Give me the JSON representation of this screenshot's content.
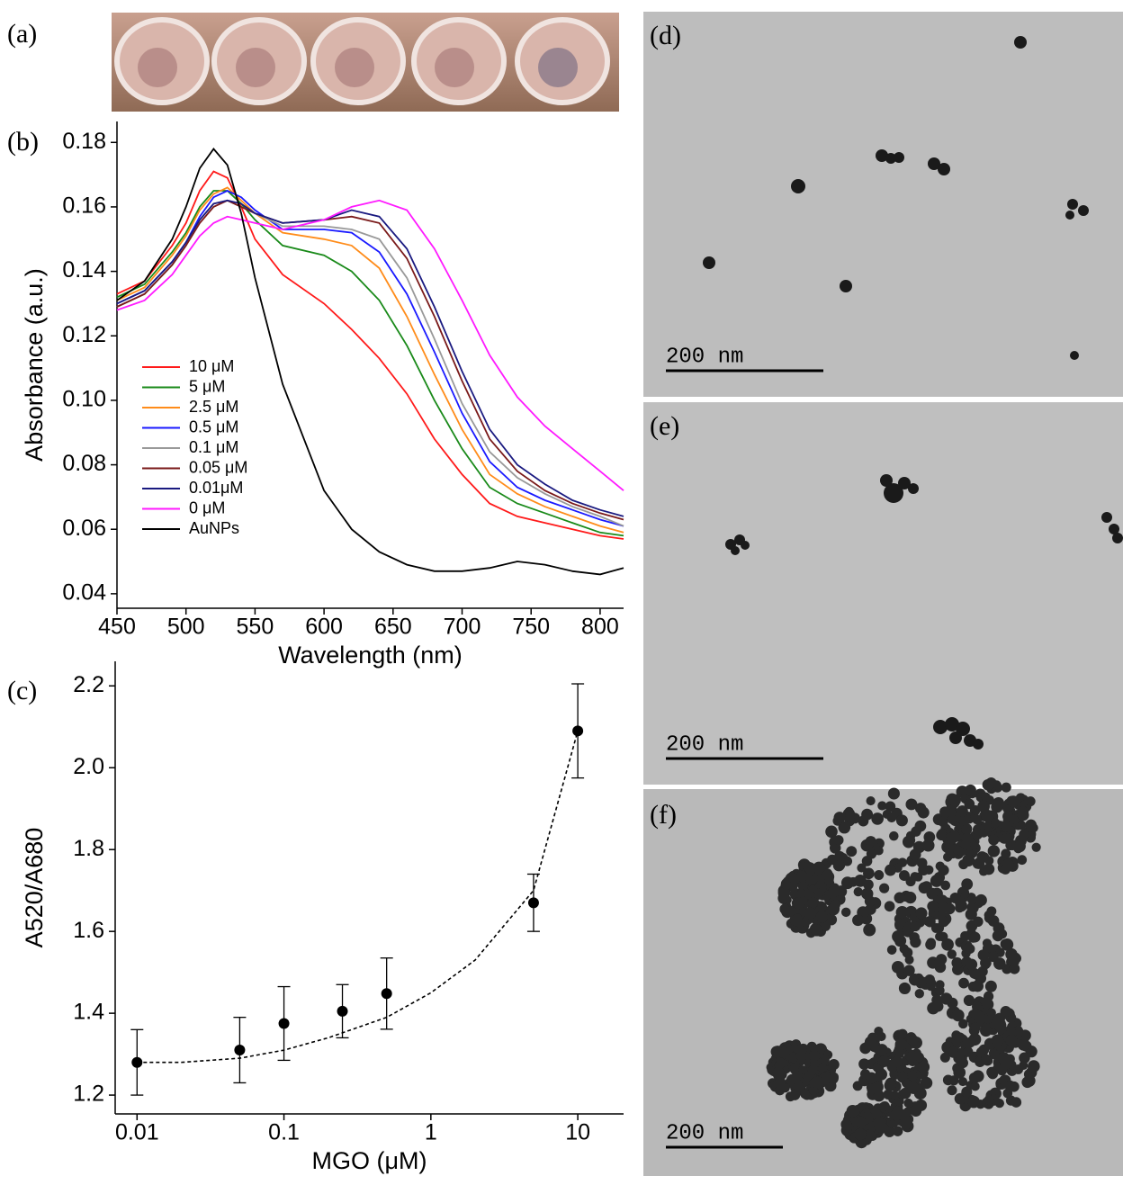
{
  "panel_labels": [
    "(a)",
    "(b)",
    "(c)",
    "(d)",
    "(e)",
    "(f)"
  ],
  "scale_bars": [
    "200 nm",
    "200 nm",
    "200 nm"
  ],
  "chart_data": [
    {
      "type": "line",
      "xlabel": "Wavelength (nm)",
      "ylabel": "Absorbance (a.u.)",
      "x": [
        450,
        470,
        490,
        500,
        510,
        520,
        530,
        540,
        550,
        570,
        600,
        620,
        640,
        660,
        680,
        700,
        720,
        740,
        760,
        780,
        800,
        817
      ],
      "xlim": [
        450,
        817
      ],
      "xticks": [
        450,
        500,
        550,
        600,
        650,
        700,
        750,
        800
      ],
      "ylim": [
        0.0355,
        0.1865
      ],
      "yticks": [
        0.04,
        0.06,
        0.08,
        {
          "value": 0.1,
          "label": "0.10"
        },
        0.12,
        0.14,
        0.16,
        0.18
      ],
      "legend": "lower-left",
      "series": [
        {
          "name": "10 μM",
          "color": "#ff1a1a",
          "values": [
            0.133,
            0.137,
            0.148,
            0.155,
            0.165,
            0.171,
            0.169,
            0.16,
            0.15,
            0.139,
            0.13,
            0.122,
            0.113,
            0.102,
            0.088,
            0.077,
            0.068,
            0.064,
            0.062,
            0.06,
            0.058,
            0.057
          ]
        },
        {
          "name": "5 μM",
          "color": "#1a8a1a",
          "values": [
            0.132,
            0.136,
            0.146,
            0.152,
            0.16,
            0.165,
            0.165,
            0.161,
            0.156,
            0.148,
            0.145,
            0.14,
            0.131,
            0.117,
            0.1,
            0.085,
            0.073,
            0.068,
            0.065,
            0.062,
            0.059,
            0.058
          ]
        },
        {
          "name": "2.5 μM",
          "color": "#ff8c1a",
          "values": [
            0.131,
            0.135,
            0.145,
            0.151,
            0.159,
            0.164,
            0.166,
            0.162,
            0.158,
            0.152,
            0.15,
            0.148,
            0.141,
            0.126,
            0.108,
            0.091,
            0.077,
            0.071,
            0.067,
            0.064,
            0.061,
            0.059
          ]
        },
        {
          "name": "0.5 μM",
          "color": "#1a1aff",
          "values": [
            0.13,
            0.134,
            0.143,
            0.149,
            0.157,
            0.163,
            0.165,
            0.163,
            0.159,
            0.153,
            0.153,
            0.152,
            0.146,
            0.133,
            0.115,
            0.096,
            0.081,
            0.073,
            0.069,
            0.066,
            0.063,
            0.061
          ]
        },
        {
          "name": "0.1 μM",
          "color": "#999999",
          "values": [
            0.129,
            0.133,
            0.142,
            0.148,
            0.156,
            0.161,
            0.162,
            0.16,
            0.158,
            0.154,
            0.154,
            0.153,
            0.15,
            0.138,
            0.119,
            0.099,
            0.084,
            0.076,
            0.071,
            0.067,
            0.064,
            0.061
          ]
        },
        {
          "name": "0.05 μM",
          "color": "#7a1a1a",
          "values": [
            0.129,
            0.133,
            0.142,
            0.148,
            0.155,
            0.16,
            0.162,
            0.16,
            0.158,
            0.155,
            0.156,
            0.157,
            0.155,
            0.144,
            0.126,
            0.106,
            0.088,
            0.078,
            0.072,
            0.068,
            0.065,
            0.063
          ]
        },
        {
          "name": "0.01μM",
          "color": "#1a1a80",
          "values": [
            0.13,
            0.134,
            0.143,
            0.149,
            0.156,
            0.161,
            0.162,
            0.161,
            0.158,
            0.155,
            0.156,
            0.159,
            0.157,
            0.147,
            0.129,
            0.109,
            0.091,
            0.08,
            0.074,
            0.069,
            0.066,
            0.064
          ]
        },
        {
          "name": "0 μM",
          "color": "#ff1aff",
          "values": [
            0.128,
            0.131,
            0.139,
            0.145,
            0.151,
            0.155,
            0.157,
            0.156,
            0.155,
            0.153,
            0.156,
            0.16,
            0.162,
            0.159,
            0.147,
            0.131,
            0.114,
            0.101,
            0.092,
            0.085,
            0.078,
            0.072
          ]
        },
        {
          "name": "AuNPs",
          "color": "#000000",
          "values": [
            0.131,
            0.137,
            0.15,
            0.16,
            0.172,
            0.178,
            0.173,
            0.158,
            0.138,
            0.105,
            0.072,
            0.06,
            0.053,
            0.049,
            0.047,
            0.047,
            0.048,
            0.05,
            0.049,
            0.047,
            0.046,
            0.048
          ]
        }
      ]
    },
    {
      "type": "scatter",
      "xlabel": "MGO (μM)",
      "ylabel": "A520/A680",
      "xscale": "log",
      "xlim": [
        0.0071,
        20.5
      ],
      "xticks": [
        0.01,
        0.1,
        1,
        10
      ],
      "ylim": [
        1.154,
        2.26
      ],
      "yticks": [
        1.2,
        1.4,
        1.6,
        1.8,
        {
          "value": 2,
          "label": "2.0"
        },
        2.2
      ],
      "series": [
        {
          "color": "#000000",
          "marker": "circle",
          "x": [
            0.01,
            0.05,
            0.1,
            0.25,
            0.5,
            5,
            10
          ],
          "values": [
            1.28,
            1.31,
            1.375,
            1.405,
            1.448,
            1.67,
            2.09
          ],
          "errors": [
            0.08,
            0.08,
            0.09,
            0.065,
            0.087,
            0.07,
            0.115
          ]
        },
        {
          "color": "#000000",
          "line_style": "dashed",
          "x": [
            0.01,
            0.02,
            0.05,
            0.1,
            0.2,
            0.5,
            1,
            2,
            5,
            10
          ],
          "values": [
            1.28,
            1.28,
            1.29,
            1.31,
            1.34,
            1.39,
            1.45,
            1.53,
            1.7,
            2.09
          ]
        }
      ]
    }
  ]
}
